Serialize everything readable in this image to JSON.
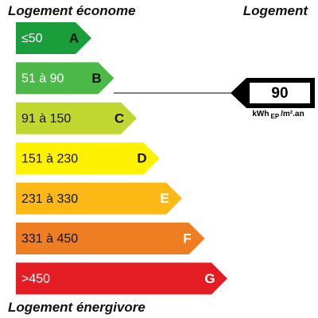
{
  "header": {
    "left": "Logement économe",
    "right": "Logement"
  },
  "classes": [
    {
      "range": "≤50",
      "letter": "A"
    },
    {
      "range": "51 à 90",
      "letter": "B"
    },
    {
      "range": "91 à 150",
      "letter": "C"
    },
    {
      "range": "151 à 230",
      "letter": "D"
    },
    {
      "range": "231 à 330",
      "letter": "E"
    },
    {
      "range": "331 à 450",
      "letter": "F"
    },
    {
      "range": ">450",
      "letter": "G"
    }
  ],
  "indicator": {
    "value": "90",
    "unit": {
      "main": "kWh",
      "sub": "EP",
      "rest": "/m².an"
    }
  },
  "footer": "Logement énergivore"
}
